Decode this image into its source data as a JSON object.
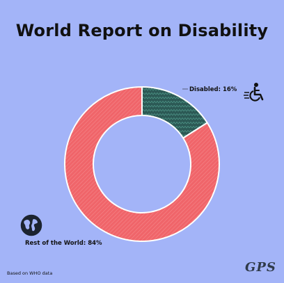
{
  "title": "World Report on Disability",
  "source_note": "Based on WHO data",
  "signature": "GPS",
  "icons": {
    "disabled": "wheelchair-icon",
    "rest": "globe-icon"
  },
  "colors": {
    "disabled": "#2c5955",
    "rest": "#f0656a",
    "background": "#a3b4f8"
  },
  "chart_data": {
    "type": "pie",
    "style": "donut",
    "title": "World Report on Disability",
    "categories": [
      "Disabled",
      "Rest of the World"
    ],
    "values": [
      16,
      84
    ],
    "labels": [
      "Disabled: 16%",
      "Rest of the World: 84%"
    ],
    "colors": [
      "#2c5955",
      "#f0656a"
    ]
  }
}
